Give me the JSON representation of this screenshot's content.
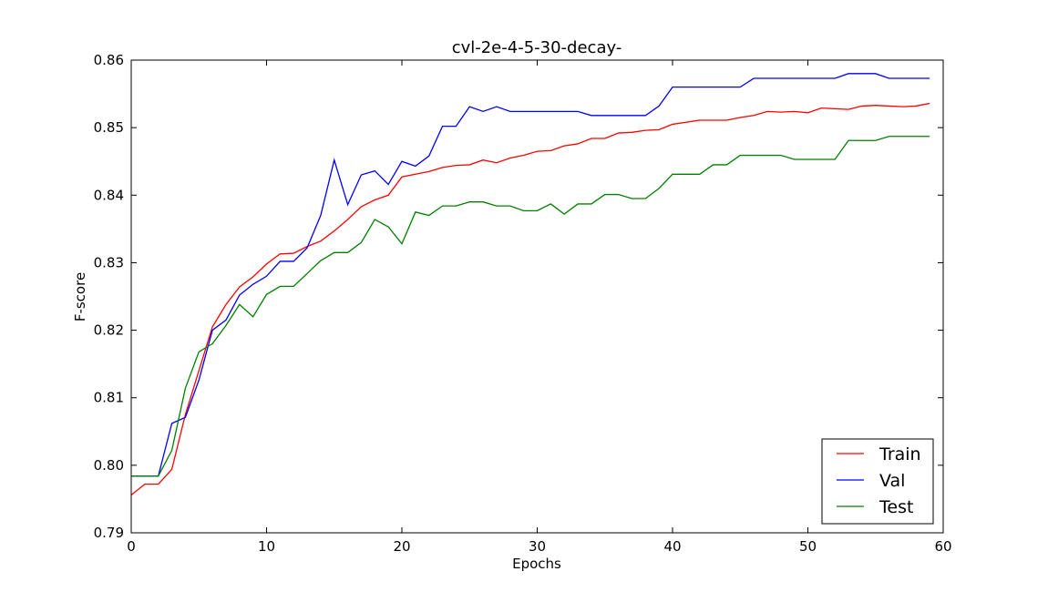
{
  "chart_data": {
    "type": "line",
    "title": "cvl-2e-4-5-30-decay-",
    "xlabel": "Epochs",
    "ylabel": "F-score",
    "xlim": [
      0,
      60
    ],
    "ylim": [
      0.79,
      0.86
    ],
    "xticks": [
      "0",
      "10",
      "20",
      "30",
      "40",
      "50",
      "60"
    ],
    "yticks": [
      "0.79",
      "0.80",
      "0.81",
      "0.82",
      "0.83",
      "0.84",
      "0.85",
      "0.86"
    ],
    "grid": false,
    "legend_position": "lower-right",
    "x": [
      0,
      1,
      2,
      3,
      4,
      5,
      6,
      7,
      8,
      9,
      10,
      11,
      12,
      13,
      14,
      15,
      16,
      17,
      18,
      19,
      20,
      21,
      22,
      23,
      24,
      25,
      26,
      27,
      28,
      29,
      30,
      31,
      32,
      33,
      34,
      35,
      36,
      37,
      38,
      39,
      40,
      41,
      42,
      43,
      44,
      45,
      46,
      47,
      48,
      49,
      50,
      51,
      52,
      53,
      54,
      55,
      56,
      57,
      58,
      59
    ],
    "series": [
      {
        "name": "Train",
        "color": "#ff0000",
        "values": [
          0.7956,
          0.7972,
          0.7972,
          0.7994,
          0.8075,
          0.814,
          0.8205,
          0.8238,
          0.8264,
          0.8279,
          0.8298,
          0.8313,
          0.8314,
          0.8324,
          0.8332,
          0.8347,
          0.8364,
          0.8383,
          0.8393,
          0.84,
          0.8427,
          0.8431,
          0.8435,
          0.8441,
          0.8444,
          0.8445,
          0.8452,
          0.8448,
          0.8455,
          0.8459,
          0.8465,
          0.8466,
          0.8473,
          0.8476,
          0.8484,
          0.8484,
          0.8492,
          0.8493,
          0.8496,
          0.8497,
          0.8505,
          0.8508,
          0.8511,
          0.8511,
          0.8511,
          0.8515,
          0.8518,
          0.8524,
          0.8523,
          0.8524,
          0.8522,
          0.8529,
          0.8528,
          0.8527,
          0.8532,
          0.8533,
          0.8532,
          0.8531,
          0.8532,
          0.8536
        ]
      },
      {
        "name": "Val",
        "color": "#0000ff",
        "values": [
          0.7984,
          0.7984,
          0.7984,
          0.8062,
          0.8071,
          0.8126,
          0.82,
          0.8215,
          0.8252,
          0.8268,
          0.828,
          0.8302,
          0.8302,
          0.8322,
          0.837,
          0.8452,
          0.8386,
          0.843,
          0.8436,
          0.8416,
          0.845,
          0.8443,
          0.8458,
          0.8502,
          0.8502,
          0.8531,
          0.8524,
          0.8531,
          0.8524,
          0.8524,
          0.8524,
          0.8524,
          0.8524,
          0.8524,
          0.8518,
          0.8518,
          0.8518,
          0.8518,
          0.8518,
          0.8532,
          0.856,
          0.856,
          0.856,
          0.856,
          0.856,
          0.856,
          0.8573,
          0.8573,
          0.8573,
          0.8573,
          0.8573,
          0.8573,
          0.8573,
          0.858,
          0.858,
          0.858,
          0.8573,
          0.8573,
          0.8573,
          0.8573
        ]
      },
      {
        "name": "Test",
        "color": "#008000",
        "values": [
          0.7984,
          0.7984,
          0.7984,
          0.8022,
          0.8114,
          0.8168,
          0.818,
          0.8207,
          0.8238,
          0.822,
          0.8253,
          0.8265,
          0.8265,
          0.8284,
          0.8303,
          0.8315,
          0.8315,
          0.833,
          0.8364,
          0.8353,
          0.8328,
          0.8375,
          0.837,
          0.8384,
          0.8384,
          0.839,
          0.839,
          0.8384,
          0.8384,
          0.8377,
          0.8377,
          0.8387,
          0.8372,
          0.8387,
          0.8387,
          0.8401,
          0.8401,
          0.8395,
          0.8395,
          0.841,
          0.8431,
          0.8431,
          0.8431,
          0.8445,
          0.8445,
          0.8459,
          0.8459,
          0.8459,
          0.8459,
          0.8453,
          0.8453,
          0.8453,
          0.8453,
          0.8481,
          0.8481,
          0.8481,
          0.8487,
          0.8487,
          0.8487,
          0.8487
        ]
      }
    ]
  }
}
